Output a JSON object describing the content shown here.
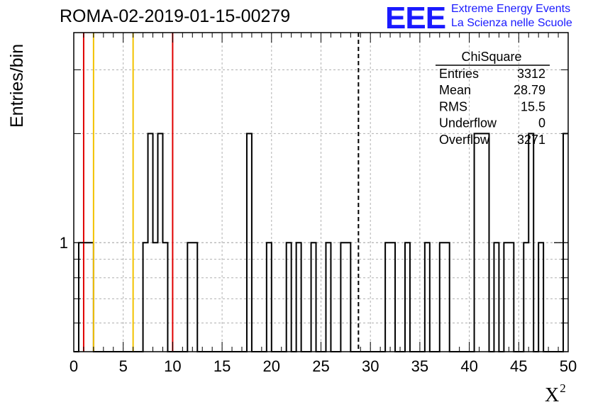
{
  "header": {
    "title": "ROMA-02-2019-01-15-00279",
    "logo_text": "EEE",
    "logo_line1": "Extreme Energy Events",
    "logo_line2": "La Scienza nelle Scuole"
  },
  "colors": {
    "line": "#000000",
    "grid": "#b0b0b0",
    "red_marker": "#e00000",
    "yellow_marker": "#f2c200",
    "logo": "#1a1aff"
  },
  "chart_data": {
    "type": "bar",
    "style": "step-histogram",
    "title": "ROMA-02-2019-01-15-00279",
    "xlabel": "X",
    "xlabel_superscript": "2",
    "ylabel": "Entries/bin",
    "xlim": [
      0,
      50
    ],
    "ylim": [
      0.5,
      3.8
    ],
    "y_scale": "log",
    "grid": true,
    "bin_width": 0.5,
    "x_ticks": [
      "0",
      "5",
      "10",
      "15",
      "20",
      "25",
      "30",
      "35",
      "40",
      "45",
      "50"
    ],
    "y_ticks": [
      "1"
    ],
    "bins": [
      {
        "x": 0.5,
        "y": 1
      },
      {
        "x": 1.0,
        "y": 1
      },
      {
        "x": 1.5,
        "y": 1
      },
      {
        "x": 7.0,
        "y": 1
      },
      {
        "x": 7.5,
        "y": 2
      },
      {
        "x": 8.0,
        "y": 1
      },
      {
        "x": 8.5,
        "y": 2
      },
      {
        "x": 9.0,
        "y": 1
      },
      {
        "x": 11.5,
        "y": 1
      },
      {
        "x": 12.0,
        "y": 1
      },
      {
        "x": 17.5,
        "y": 2
      },
      {
        "x": 19.5,
        "y": 1
      },
      {
        "x": 21.5,
        "y": 1
      },
      {
        "x": 22.5,
        "y": 1
      },
      {
        "x": 24.0,
        "y": 1
      },
      {
        "x": 25.5,
        "y": 1
      },
      {
        "x": 27.0,
        "y": 1
      },
      {
        "x": 27.5,
        "y": 1
      },
      {
        "x": 31.5,
        "y": 1
      },
      {
        "x": 32.0,
        "y": 1
      },
      {
        "x": 33.5,
        "y": 1
      },
      {
        "x": 35.5,
        "y": 1
      },
      {
        "x": 37.0,
        "y": 1
      },
      {
        "x": 37.5,
        "y": 1
      },
      {
        "x": 40.5,
        "y": 2
      },
      {
        "x": 41.0,
        "y": 2
      },
      {
        "x": 41.5,
        "y": 2
      },
      {
        "x": 42.5,
        "y": 1
      },
      {
        "x": 43.5,
        "y": 1
      },
      {
        "x": 44.0,
        "y": 1
      },
      {
        "x": 45.5,
        "y": 1
      },
      {
        "x": 46.0,
        "y": 2
      },
      {
        "x": 47.0,
        "y": 1
      },
      {
        "x": 49.5,
        "y": 2
      }
    ],
    "markers": [
      {
        "x": 1,
        "color": "#e00000",
        "style": "solid"
      },
      {
        "x": 2,
        "color": "#f2c200",
        "style": "solid"
      },
      {
        "x": 6,
        "color": "#f2c200",
        "style": "solid"
      },
      {
        "x": 10,
        "color": "#e00000",
        "style": "solid"
      },
      {
        "x": 28.79,
        "color": "#000000",
        "style": "dashed"
      }
    ],
    "stats_box": {
      "name": "ChiSquare",
      "rows": [
        {
          "label": "Entries",
          "value": "3312"
        },
        {
          "label": "Mean",
          "value": "28.79"
        },
        {
          "label": "RMS",
          "value": "15.5"
        },
        {
          "label": "Underflow",
          "value": "0"
        },
        {
          "label": "Overflow",
          "value": "3271"
        }
      ]
    }
  }
}
